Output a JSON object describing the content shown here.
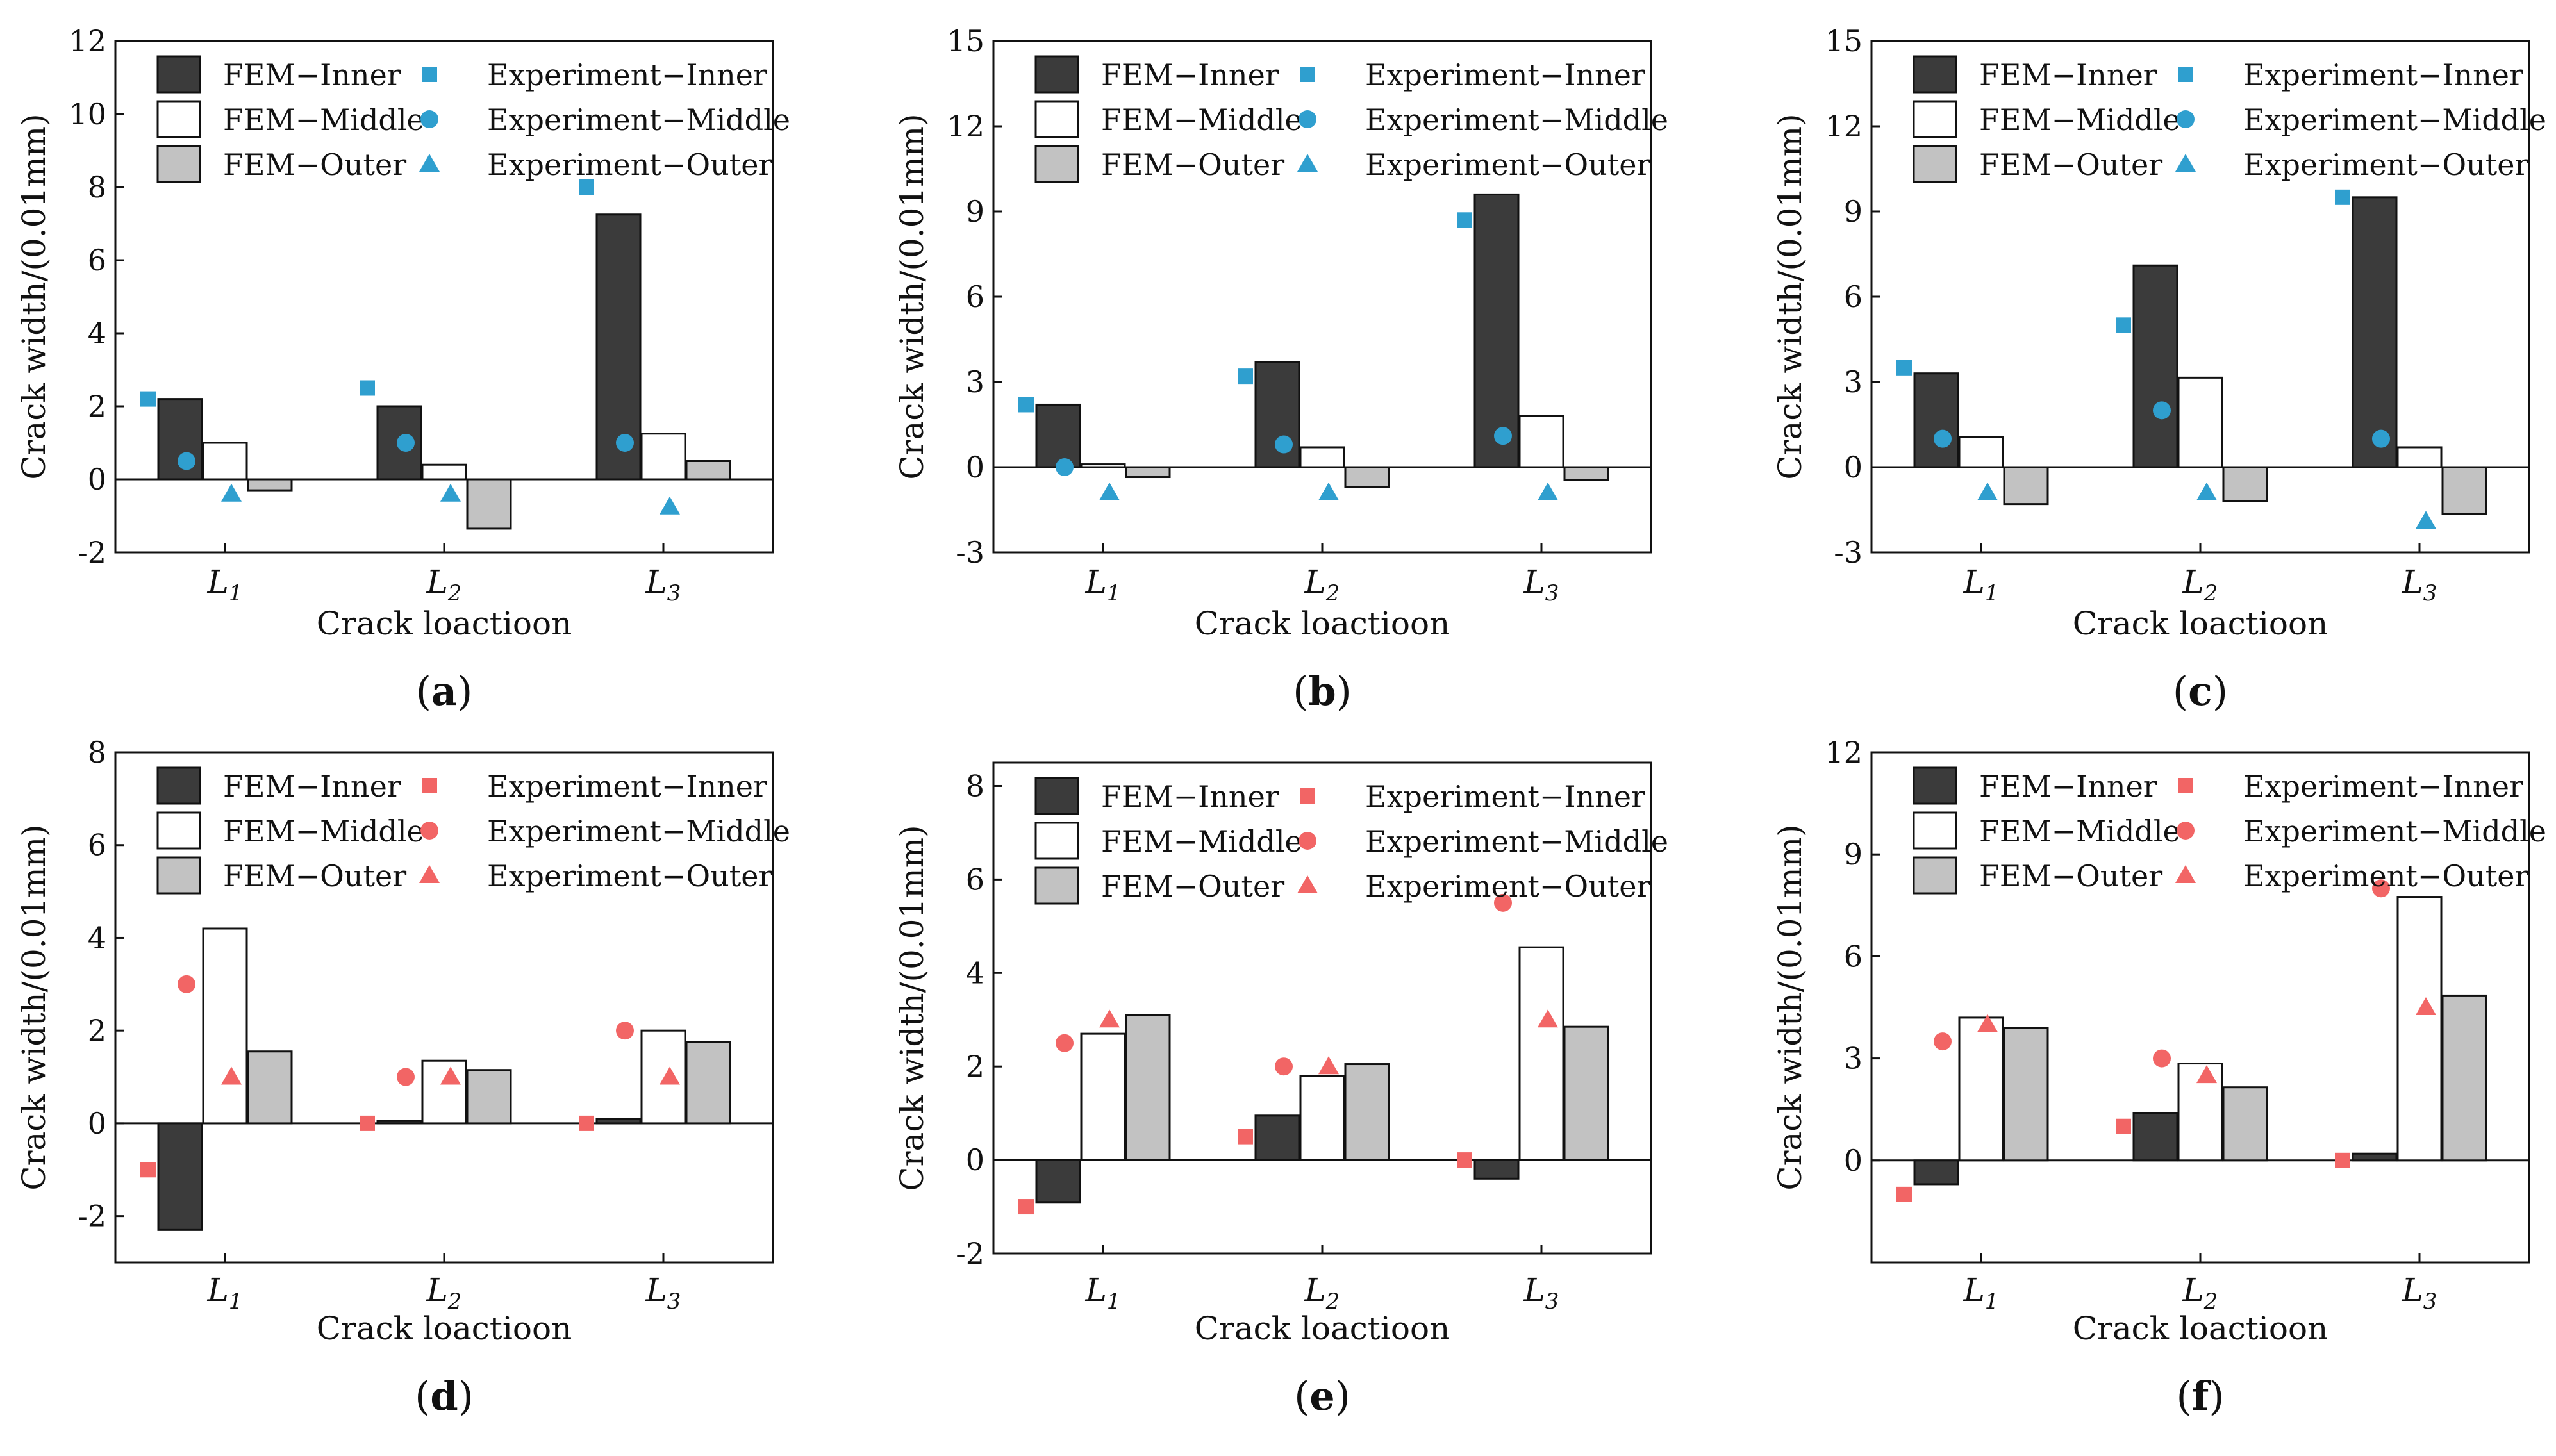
{
  "figure": {
    "ylabel": "Crack width/(0.01mm)",
    "xlabel": "Crack loactioon",
    "categories": [
      "L1",
      "L2",
      "L3"
    ],
    "legend": {
      "fem_inner": "FEM−Inner",
      "fem_middle": "FEM−Middle",
      "fem_outer": "FEM−Outer",
      "exp_inner": "Experiment−Inner",
      "exp_middle": "Experiment−Middle",
      "exp_outer": "Experiment−Outer"
    },
    "colors": {
      "fem_inner": "#3b3b3b",
      "fem_middle": "#ffffff",
      "fem_outer": "#c2c2c2",
      "exp_blue": "#2f9fcf",
      "exp_red": "#f26565"
    }
  },
  "chart_data": [
    {
      "type": "bar",
      "panel_label": "(a)",
      "categories": [
        "L1",
        "L2",
        "L3"
      ],
      "ylim": [
        -2,
        12
      ],
      "yticks": [
        -2,
        0,
        2,
        4,
        6,
        8,
        10,
        12
      ],
      "marker_color": "#2f9fcf",
      "fem": {
        "inner": [
          2.2,
          2.0,
          7.25
        ],
        "middle": [
          1.0,
          0.4,
          1.25
        ],
        "outer": [
          -0.3,
          -1.35,
          0.5
        ]
      },
      "experiment": {
        "inner": [
          2.2,
          2.5,
          8.0
        ],
        "middle": [
          0.5,
          1.0,
          1.0
        ],
        "outer": [
          -0.4,
          -0.4,
          -0.75
        ]
      },
      "xlabel": "Crack loactioon",
      "ylabel": "Crack width/(0.01mm)"
    },
    {
      "type": "bar",
      "panel_label": "(b)",
      "categories": [
        "L1",
        "L2",
        "L3"
      ],
      "ylim": [
        -3,
        15
      ],
      "yticks": [
        -3,
        0,
        3,
        6,
        9,
        12,
        15
      ],
      "marker_color": "#2f9fcf",
      "fem": {
        "inner": [
          2.2,
          3.7,
          9.6
        ],
        "middle": [
          0.1,
          0.7,
          1.8
        ],
        "outer": [
          -0.35,
          -0.7,
          -0.45
        ]
      },
      "experiment": {
        "inner": [
          2.2,
          3.2,
          8.7
        ],
        "middle": [
          0.0,
          0.8,
          1.1
        ],
        "outer": [
          -0.9,
          -0.9,
          -0.9
        ]
      },
      "xlabel": "Crack loactioon",
      "ylabel": "Crack width/(0.01mm)"
    },
    {
      "type": "bar",
      "panel_label": "(c)",
      "categories": [
        "L1",
        "L2",
        "L3"
      ],
      "ylim": [
        -3,
        15
      ],
      "yticks": [
        -3,
        0,
        3,
        6,
        9,
        12,
        15
      ],
      "marker_color": "#2f9fcf",
      "fem": {
        "inner": [
          3.3,
          7.1,
          9.5
        ],
        "middle": [
          1.05,
          3.15,
          0.7
        ],
        "outer": [
          -1.3,
          -1.2,
          -1.65
        ]
      },
      "experiment": {
        "inner": [
          3.5,
          5.0,
          9.5
        ],
        "middle": [
          1.0,
          2.0,
          1.0
        ],
        "outer": [
          -0.9,
          -0.9,
          -1.9
        ]
      },
      "xlabel": "Crack loactioon",
      "ylabel": "Crack width/(0.01mm)"
    },
    {
      "type": "bar",
      "panel_label": "(d)",
      "categories": [
        "L1",
        "L2",
        "L3"
      ],
      "ylim": [
        -3,
        8
      ],
      "yticks": [
        -2,
        0,
        2,
        4,
        6,
        8
      ],
      "marker_color": "#f26565",
      "fem": {
        "inner": [
          -2.3,
          0.05,
          0.1
        ],
        "middle": [
          4.2,
          1.35,
          2.0
        ],
        "outer": [
          1.55,
          1.15,
          1.75
        ]
      },
      "experiment": {
        "inner": [
          -1.0,
          0.0,
          0.0
        ],
        "middle": [
          3.0,
          1.0,
          2.0
        ],
        "outer": [
          1.0,
          1.0,
          1.0
        ]
      },
      "xlabel": "Crack loactioon",
      "ylabel": "Crack width/(0.01mm)"
    },
    {
      "type": "bar",
      "panel_label": "(e)",
      "categories": [
        "L1",
        "L2",
        "L3"
      ],
      "ylim": [
        -2,
        8.5
      ],
      "yticks": [
        -2,
        0,
        2,
        4,
        6,
        8
      ],
      "marker_color": "#f26565",
      "fem": {
        "inner": [
          -0.9,
          0.95,
          -0.4
        ],
        "middle": [
          2.7,
          1.8,
          4.55
        ],
        "outer": [
          3.1,
          2.05,
          2.85
        ]
      },
      "experiment": {
        "inner": [
          -1.0,
          0.5,
          0.0
        ],
        "middle": [
          2.5,
          2.0,
          5.5
        ],
        "outer": [
          3.0,
          2.0,
          3.0
        ]
      },
      "xlabel": "Crack loactioon",
      "ylabel": "Crack width/(0.01mm)"
    },
    {
      "type": "bar",
      "panel_label": "(f)",
      "categories": [
        "L1",
        "L2",
        "L3"
      ],
      "ylim": [
        -3,
        12
      ],
      "yticks": [
        0,
        3,
        6,
        9,
        12
      ],
      "marker_color": "#f26565",
      "fem": {
        "inner": [
          -0.7,
          1.4,
          0.2
        ],
        "middle": [
          4.2,
          2.85,
          7.75
        ],
        "outer": [
          3.9,
          2.15,
          4.85
        ]
      },
      "experiment": {
        "inner": [
          -1.0,
          1.0,
          0.0
        ],
        "middle": [
          3.5,
          3.0,
          8.0
        ],
        "outer": [
          4.0,
          2.5,
          4.5
        ]
      },
      "xlabel": "Crack loactioon",
      "ylabel": "Crack width/(0.01mm)"
    }
  ]
}
